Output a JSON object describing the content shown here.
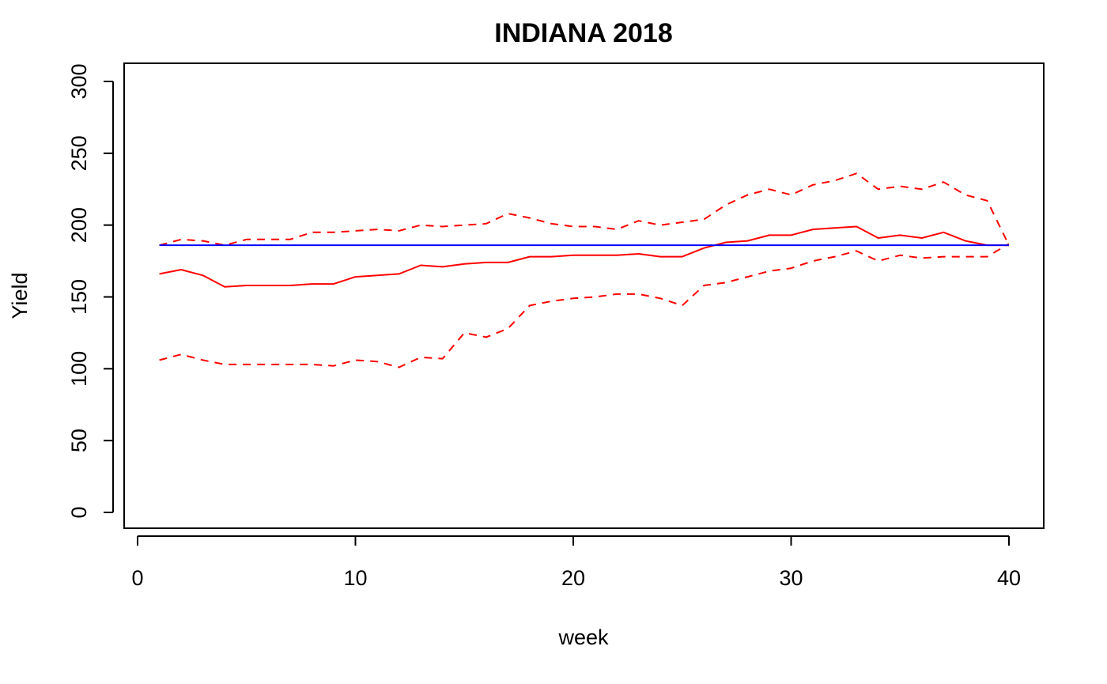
{
  "chart_data": {
    "type": "line",
    "title": "INDIANA 2018",
    "xlabel": "week",
    "ylabel": "Yield",
    "xlim": [
      0,
      42
    ],
    "ylim": [
      0,
      310
    ],
    "xticks": [
      0,
      10,
      20,
      30,
      40
    ],
    "yticks": [
      0,
      50,
      100,
      150,
      200,
      250,
      300
    ],
    "grid": false,
    "legend": "none",
    "series": [
      {
        "style": "solid",
        "color": "#ff0000",
        "x": [
          1,
          2,
          3,
          4,
          5,
          6,
          7,
          8,
          9,
          10,
          11,
          12,
          13,
          14,
          15,
          16,
          17,
          18,
          19,
          20,
          21,
          22,
          23,
          24,
          25,
          26,
          27,
          28,
          29,
          30,
          31,
          32,
          33,
          34,
          35,
          36,
          37,
          38,
          39,
          40
        ],
        "values": [
          166,
          169,
          165,
          157,
          158,
          158,
          158,
          159,
          159,
          164,
          165,
          166,
          172,
          171,
          173,
          174,
          174,
          178,
          178,
          179,
          179,
          179,
          180,
          178,
          178,
          184,
          188,
          189,
          193,
          193,
          197,
          198,
          199,
          191,
          193,
          191,
          195,
          189,
          186,
          186
        ]
      },
      {
        "style": "dashed",
        "color": "#ff0000",
        "x": [
          1,
          2,
          3,
          4,
          5,
          6,
          7,
          8,
          9,
          10,
          11,
          12,
          13,
          14,
          15,
          16,
          17,
          18,
          19,
          20,
          21,
          22,
          23,
          24,
          25,
          26,
          27,
          28,
          29,
          30,
          31,
          32,
          33,
          34,
          35,
          36,
          37,
          38,
          39,
          40
        ],
        "values": [
          186,
          190,
          189,
          186,
          190,
          190,
          190,
          195,
          195,
          196,
          197,
          196,
          200,
          199,
          200,
          201,
          208,
          205,
          201,
          199,
          199,
          197,
          203,
          200,
          202,
          204,
          214,
          221,
          225,
          221,
          228,
          231,
          236,
          225,
          227,
          225,
          230,
          221,
          217,
          186
        ]
      },
      {
        "style": "dashed",
        "color": "#ff0000",
        "x": [
          1,
          2,
          3,
          4,
          5,
          6,
          7,
          8,
          9,
          10,
          11,
          12,
          13,
          14,
          15,
          16,
          17,
          18,
          19,
          20,
          21,
          22,
          23,
          24,
          25,
          26,
          27,
          28,
          29,
          30,
          31,
          32,
          33,
          34,
          35,
          36,
          37,
          38,
          39,
          40
        ],
        "values": [
          106,
          110,
          106,
          103,
          103,
          103,
          103,
          103,
          102,
          106,
          105,
          101,
          108,
          107,
          125,
          122,
          128,
          144,
          147,
          149,
          150,
          152,
          152,
          149,
          144,
          158,
          160,
          164,
          168,
          170,
          175,
          178,
          182,
          175,
          179,
          177,
          178,
          178,
          178,
          187
        ]
      },
      {
        "style": "solid",
        "color": "#0000ff",
        "x": [
          1,
          40
        ],
        "values": [
          186,
          186
        ]
      }
    ]
  }
}
